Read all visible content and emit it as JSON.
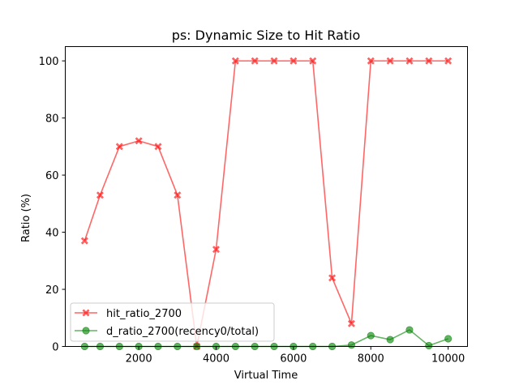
{
  "chart_data": {
    "type": "line",
    "title": "ps: Dynamic Size to Hit Ratio",
    "xlabel": "Virtual Time",
    "ylabel": "Ratio (%)",
    "xlim": [
      100,
      10500
    ],
    "ylim": [
      0,
      105
    ],
    "xticks": [
      2000,
      4000,
      6000,
      8000,
      10000
    ],
    "yticks": [
      0,
      20,
      40,
      60,
      80,
      100
    ],
    "grid": false,
    "legend_position": "lower-left",
    "x": [
      600,
      1000,
      1500,
      2000,
      2500,
      3000,
      3500,
      4000,
      4500,
      5000,
      5500,
      6000,
      6500,
      7000,
      7500,
      8000,
      8500,
      9000,
      9500,
      10000
    ],
    "series": [
      {
        "name": "hit_ratio_2700",
        "color": "#ff0000",
        "marker": "x-filled",
        "values": [
          37,
          53,
          70,
          72,
          70,
          53,
          0,
          34,
          100,
          100,
          100,
          100,
          100,
          24,
          8,
          100,
          100,
          100,
          100,
          100
        ]
      },
      {
        "name": "d_ratio_2700(recency0/total)",
        "color": "#008000",
        "marker": "circle",
        "values": [
          0,
          0,
          0,
          0,
          0,
          0,
          0,
          0,
          0,
          0,
          0,
          0,
          0,
          0,
          0.5,
          3.8,
          2.4,
          5.8,
          0.3,
          2.7
        ]
      }
    ]
  }
}
